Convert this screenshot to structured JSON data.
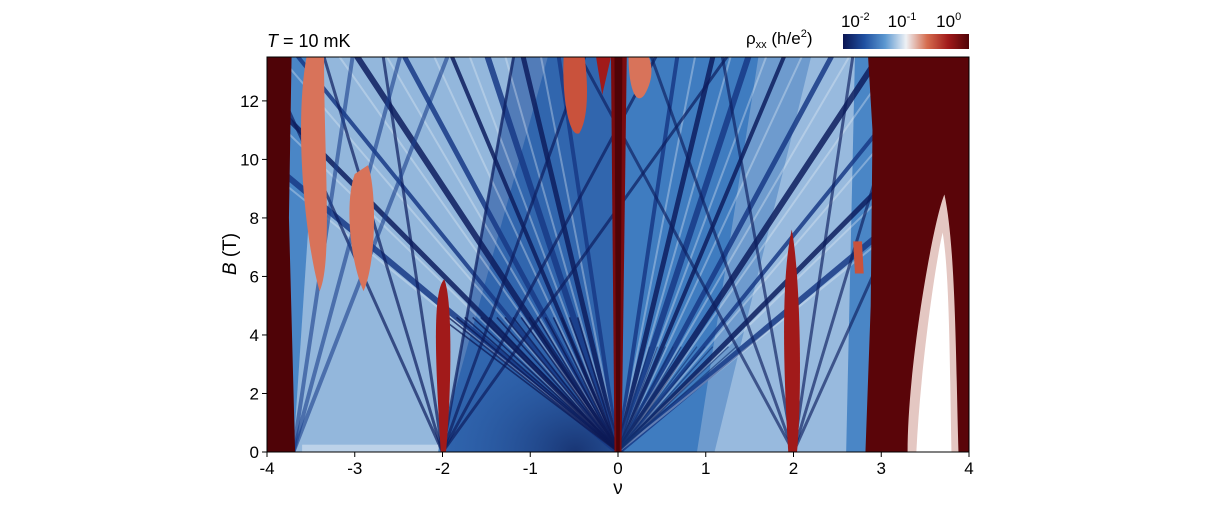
{
  "chart_data": {
    "type": "heatmap",
    "title_prefix": "T",
    "title_value": " = 10 mK",
    "xlabel": "ν",
    "ylabel_symbol": "B",
    "ylabel_unit": " (T)",
    "xlim": [
      -4,
      4
    ],
    "ylim": [
      0,
      13.5
    ],
    "x_ticks": [
      -4,
      -3,
      -2,
      -1,
      0,
      1,
      2,
      3,
      4
    ],
    "x_tick_labels": [
      "-4",
      "-3",
      "-2",
      "-1",
      "0",
      "1",
      "2",
      "3",
      "4"
    ],
    "y_ticks": [
      0,
      2,
      4,
      6,
      8,
      10,
      12
    ],
    "y_tick_labels": [
      "0",
      "2",
      "4",
      "6",
      "8",
      "10",
      "12"
    ],
    "colorbar": {
      "label_symbol": "ρ",
      "label_sub": "xx",
      "label_unit": " (h/e",
      "label_unit_sup": "2",
      "label_close": ")",
      "scale": "log",
      "tick_labels": [
        {
          "base": "10",
          "exp": "-2"
        },
        {
          "base": "10",
          "exp": "-1"
        },
        {
          "base": "10",
          "exp": "0"
        }
      ],
      "colors": [
        "#0b1552",
        "#1f4fa0",
        "#5b97d0",
        "#eef1f5",
        "#d56d4f",
        "#a11a1a",
        "#4f0307"
      ]
    },
    "features": {
      "insulating_nu": [
        -4,
        -2,
        0,
        2,
        4
      ],
      "fan_origin_nu": [
        0,
        -2,
        2
      ],
      "notes": "Landau fan diagram of longitudinal resistivity vs filling factor and magnetic field"
    }
  }
}
